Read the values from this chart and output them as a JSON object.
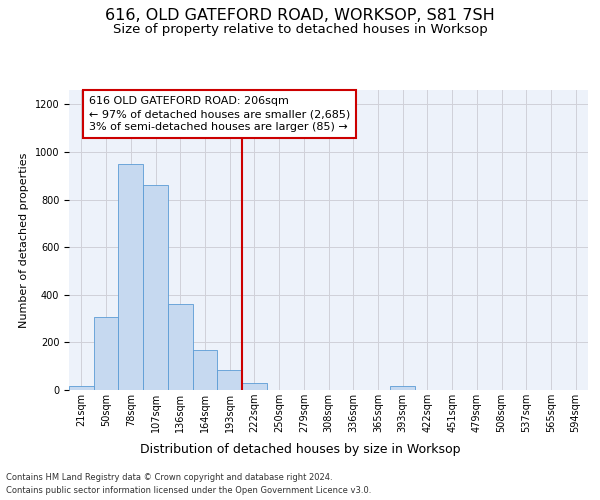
{
  "title": "616, OLD GATEFORD ROAD, WORKSOP, S81 7SH",
  "subtitle": "Size of property relative to detached houses in Worksop",
  "xlabel": "Distribution of detached houses by size in Worksop",
  "ylabel": "Number of detached properties",
  "bin_labels": [
    "21sqm",
    "50sqm",
    "78sqm",
    "107sqm",
    "136sqm",
    "164sqm",
    "193sqm",
    "222sqm",
    "250sqm",
    "279sqm",
    "308sqm",
    "336sqm",
    "365sqm",
    "393sqm",
    "422sqm",
    "451sqm",
    "479sqm",
    "508sqm",
    "537sqm",
    "565sqm",
    "594sqm"
  ],
  "bar_values": [
    15,
    305,
    950,
    860,
    360,
    170,
    85,
    30,
    0,
    0,
    0,
    0,
    0,
    15,
    0,
    0,
    0,
    0,
    0,
    0,
    0
  ],
  "bar_color": "#c6d9f0",
  "bar_edge_color": "#5b9bd5",
  "grid_color": "#d0d0d8",
  "bg_color": "#edf2fa",
  "vline_color": "#cc0000",
  "annotation_text": "616 OLD GATEFORD ROAD: 206sqm\n← 97% of detached houses are smaller (2,685)\n3% of semi-detached houses are larger (85) →",
  "ann_box_edge": "#cc0000",
  "ylim": [
    0,
    1260
  ],
  "yticks": [
    0,
    200,
    400,
    600,
    800,
    1000,
    1200
  ],
  "footer": "Contains HM Land Registry data © Crown copyright and database right 2024.\nContains public sector information licensed under the Open Government Licence v3.0.",
  "title_fontsize": 11.5,
  "subtitle_fontsize": 9.5,
  "xlabel_fontsize": 9,
  "ylabel_fontsize": 8,
  "tick_fontsize": 7,
  "ann_fontsize": 8,
  "footer_fontsize": 6
}
